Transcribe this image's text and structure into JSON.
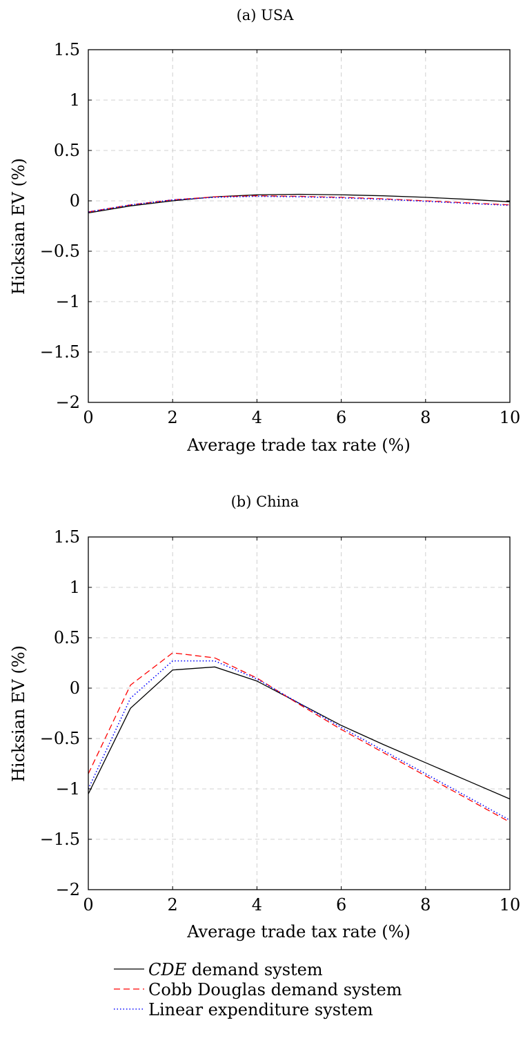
{
  "chart_data": [
    {
      "type": "line",
      "title": "(a) USA",
      "xlabel": "Average trade tax rate (%)",
      "ylabel": "Hicksian EV (%)",
      "xlim": [
        0,
        10
      ],
      "ylim": [
        -2,
        1.5
      ],
      "xticks": [
        0,
        2,
        4,
        6,
        8,
        10
      ],
      "xtick_labels": [
        "0",
        "2",
        "4",
        "6",
        "8",
        "10"
      ],
      "yticks": [
        -2,
        -1.5,
        -1,
        -0.5,
        0,
        0.5,
        1,
        1.5
      ],
      "ytick_labels": [
        "−2",
        "−1.5",
        "−1",
        "−0.5",
        "0",
        "0.5",
        "1",
        "1.5"
      ],
      "grid": true,
      "x": [
        0,
        1,
        2,
        3,
        4,
        5,
        6,
        7,
        8,
        9,
        10
      ],
      "series": [
        {
          "name": "CDE demand system",
          "color": "#000000",
          "style": "solid",
          "values": [
            -0.12,
            -0.05,
            0.0,
            0.04,
            0.06,
            0.065,
            0.06,
            0.05,
            0.035,
            0.015,
            -0.01
          ]
        },
        {
          "name": "Cobb Douglas demand system",
          "color": "#ff0000",
          "style": "dashed",
          "values": [
            -0.11,
            -0.04,
            0.01,
            0.04,
            0.05,
            0.045,
            0.035,
            0.02,
            0.0,
            -0.02,
            -0.04
          ]
        },
        {
          "name": "Linear expenditure system",
          "color": "#0000ff",
          "style": "dotted",
          "values": [
            -0.11,
            -0.04,
            0.01,
            0.035,
            0.045,
            0.04,
            0.03,
            0.015,
            -0.005,
            -0.025,
            -0.045
          ]
        }
      ]
    },
    {
      "type": "line",
      "title": "(b) China",
      "xlabel": "Average trade tax rate (%)",
      "ylabel": "Hicksian EV (%)",
      "xlim": [
        0,
        10
      ],
      "ylim": [
        -2,
        1.5
      ],
      "xticks": [
        0,
        2,
        4,
        6,
        8,
        10
      ],
      "xtick_labels": [
        "0",
        "2",
        "4",
        "6",
        "8",
        "10"
      ],
      "yticks": [
        -2,
        -1.5,
        -1,
        -0.5,
        0,
        0.5,
        1,
        1.5
      ],
      "ytick_labels": [
        "−2",
        "−1.5",
        "−1",
        "−0.5",
        "0",
        "0.5",
        "1",
        "1.5"
      ],
      "grid": true,
      "x": [
        0,
        1,
        2,
        3,
        4,
        5,
        6,
        7,
        8,
        9,
        10
      ],
      "series": [
        {
          "name": "CDE demand system",
          "color": "#000000",
          "style": "solid",
          "values": [
            -1.05,
            -0.2,
            0.18,
            0.21,
            0.07,
            -0.15,
            -0.37,
            -0.56,
            -0.74,
            -0.92,
            -1.1
          ]
        },
        {
          "name": "Cobb Douglas demand system",
          "color": "#ff0000",
          "style": "dashed",
          "values": [
            -0.85,
            0.03,
            0.35,
            0.3,
            0.1,
            -0.16,
            -0.41,
            -0.64,
            -0.87,
            -1.1,
            -1.33
          ]
        },
        {
          "name": "Linear expenditure system",
          "color": "#0000ff",
          "style": "dotted",
          "values": [
            -1.0,
            -0.1,
            0.27,
            0.27,
            0.09,
            -0.15,
            -0.39,
            -0.62,
            -0.85,
            -1.08,
            -1.31
          ]
        }
      ]
    }
  ],
  "legend": {
    "placement": "bottom",
    "items": [
      {
        "label_em": "CDE",
        "label_rest": " demand system",
        "color": "#000000",
        "style": "solid"
      },
      {
        "label_em": "",
        "label_rest": "Cobb Douglas demand system",
        "color": "#ff0000",
        "style": "dashed"
      },
      {
        "label_em": "",
        "label_rest": "Linear expenditure system",
        "color": "#0000ff",
        "style": "dotted"
      }
    ]
  }
}
